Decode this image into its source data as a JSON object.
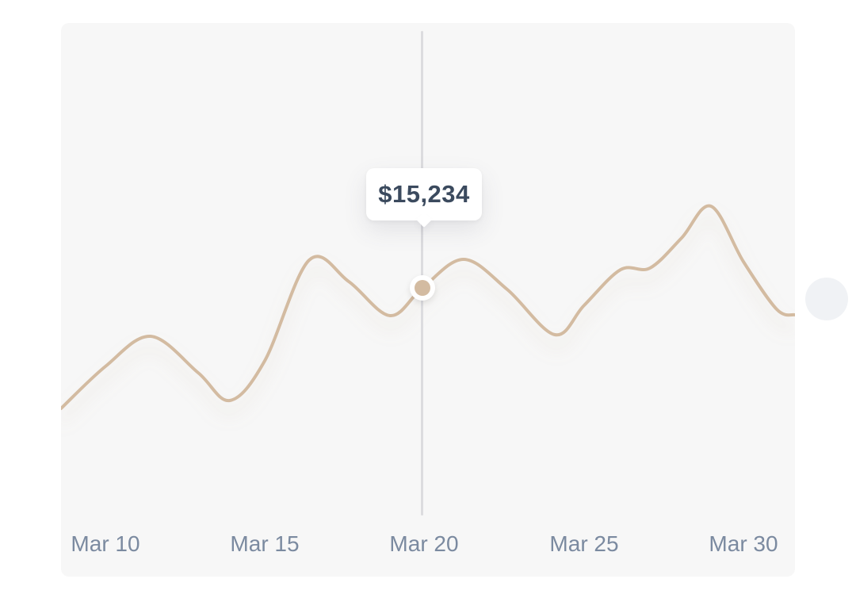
{
  "chart_data": {
    "type": "line",
    "title": "",
    "x_tick_labels": [
      "Mar 10",
      "Mar 15",
      "Mar 20",
      "Mar 25",
      "Mar 30"
    ],
    "series": [
      {
        "name": "value",
        "points": [
          {
            "date": "Mar 9",
            "value": 9700
          },
          {
            "date": "Mar 10",
            "value": 11650
          },
          {
            "date": "Mar 11",
            "value": 13000
          },
          {
            "date": "Mar 12",
            "value": 11350
          },
          {
            "date": "Mar 14",
            "value": 10100
          },
          {
            "date": "Mar 15",
            "value": 11900
          },
          {
            "date": "Mar 16",
            "value": 16450
          },
          {
            "date": "Mar 17",
            "value": 15480
          },
          {
            "date": "Mar 19",
            "value": 13950
          },
          {
            "date": "Mar 20",
            "value": 15234
          },
          {
            "date": "Mar 21",
            "value": 16500
          },
          {
            "date": "Mar 22",
            "value": 15130
          },
          {
            "date": "Mar 24",
            "value": 13050
          },
          {
            "date": "Mar 25",
            "value": 14400
          },
          {
            "date": "Mar 26",
            "value": 16000
          },
          {
            "date": "Mar 27",
            "value": 16100
          },
          {
            "date": "Mar 28",
            "value": 17470
          },
          {
            "date": "Mar 29",
            "value": 18900
          },
          {
            "date": "Mar 30",
            "value": 16400
          },
          {
            "date": "Mar 31",
            "value": 13950
          }
        ]
      }
    ],
    "highlighted_point": {
      "date": "Mar 20",
      "value": 15234,
      "tooltip": "$15,234"
    },
    "line_color": "#d3bba1",
    "colors": {
      "panel_background": "#f7f7f7",
      "page_background": "#ffffff",
      "crosshair": "#dcdcdf",
      "axis_label": "#7b8aa0",
      "tooltip_text": "#3b4a5e",
      "marker_fill": "#d3bba1",
      "marker_ring": "#ffffff",
      "side_circle": "#f0f2f5"
    },
    "grid": false,
    "y_axis_visible": false,
    "legend_position": "none",
    "render_path_points": [
      [
        0,
        486
      ],
      [
        56,
        433
      ],
      [
        113,
        395
      ],
      [
        173,
        441
      ],
      [
        213,
        476
      ],
      [
        257,
        426
      ],
      [
        313,
        299
      ],
      [
        363,
        326
      ],
      [
        415,
        369
      ],
      [
        456,
        334
      ],
      [
        508,
        298
      ],
      [
        563,
        336
      ],
      [
        623,
        393
      ],
      [
        660,
        356
      ],
      [
        706,
        311
      ],
      [
        743,
        309
      ],
      [
        783,
        271
      ],
      [
        820,
        231
      ],
      [
        861,
        301
      ],
      [
        903,
        361
      ],
      [
        926,
        368
      ]
    ]
  }
}
